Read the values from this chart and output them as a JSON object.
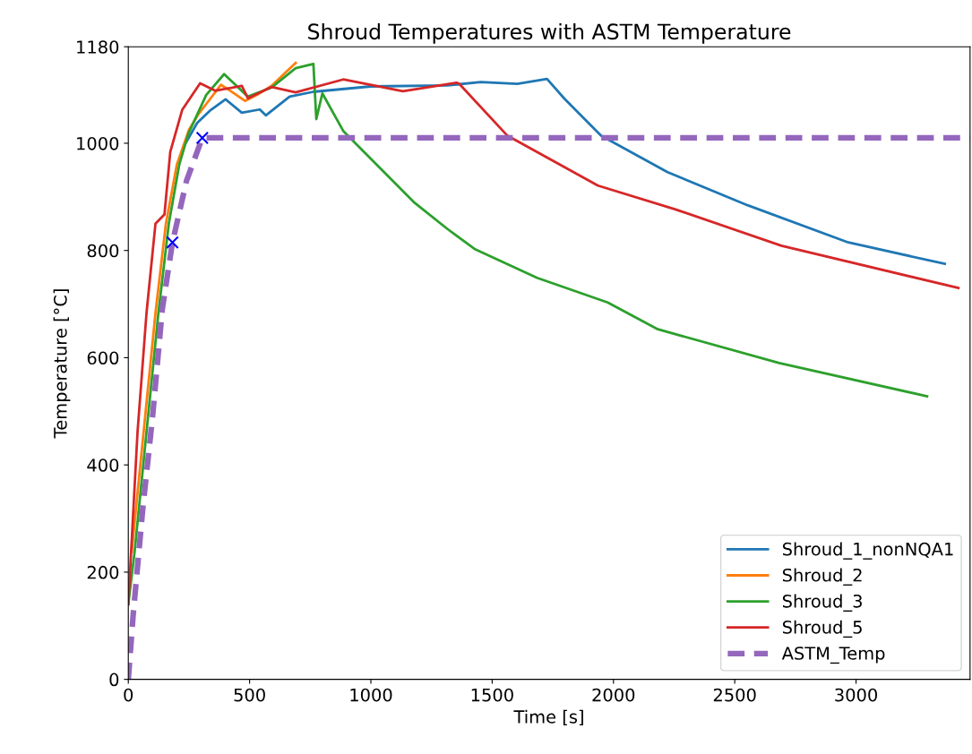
{
  "chart_data": {
    "type": "line",
    "title": "Shroud Temperatures with ASTM Temperature",
    "xlabel": "Time [s]",
    "ylabel": "Temperature [°C]",
    "xlim": [
      0,
      3470
    ],
    "ylim": [
      0,
      1180
    ],
    "xticks": [
      0,
      500,
      1000,
      1500,
      2000,
      2500,
      3000
    ],
    "yticks": [
      0,
      200,
      400,
      600,
      800,
      1000,
      1180
    ],
    "grid": false,
    "legend": "bottom right",
    "line_style": "solid",
    "marker": "none",
    "series": [
      {
        "name": "Shroud_1_nonNQA1",
        "color": "#1f77b4",
        "x": [
          230,
          284,
          340,
          401,
          468,
          542,
          567,
          665,
          763,
          1000,
          1316,
          1453,
          1604,
          1726,
          1798,
          1949,
          2223,
          2555,
          2968,
          3366
        ],
        "values": [
          995,
          1038,
          1062,
          1082,
          1057,
          1063,
          1052,
          1087,
          1096,
          1106,
          1108,
          1114,
          1111,
          1120,
          1083,
          1014,
          946,
          884,
          815,
          775
        ]
      },
      {
        "name": "Shroud_2",
        "color": "#ff7f0e",
        "x": [
          14,
          63,
          112,
          155,
          200,
          250,
          290,
          321,
          382,
          430,
          481,
          530,
          590,
          690
        ],
        "values": [
          238,
          461,
          683,
          850,
          960,
          1025,
          1055,
          1073,
          1109,
          1095,
          1079,
          1090,
          1107,
          1150
        ]
      },
      {
        "name": "Shroud_3",
        "color": "#2ca02c",
        "x": [
          0,
          26,
          75,
          124,
          167,
          210,
          247,
          321,
          395,
          493,
          591,
          690,
          763,
          775,
          800,
          886,
          1180,
          1316,
          1427,
          1685,
          1976,
          2183,
          2683,
          3293
        ],
        "values": [
          140,
          238,
          461,
          683,
          850,
          960,
          1017,
          1090,
          1129,
          1087,
          1104,
          1140,
          1148,
          1045,
          1093,
          1023,
          889,
          840,
          803,
          749,
          703,
          653,
          590,
          528
        ]
      },
      {
        "name": "Shroud_5",
        "color": "#d62728",
        "x": [
          0,
          38,
          75,
          112,
          149,
          173,
          222,
          296,
          358,
          468,
          493,
          591,
          690,
          886,
          1132,
          1353,
          1364,
          1563,
          1936,
          2253,
          2692,
          3422
        ],
        "values": [
          140,
          461,
          683,
          850,
          867,
          984,
          1062,
          1112,
          1098,
          1107,
          1084,
          1105,
          1095,
          1119,
          1097,
          1113,
          1111,
          1014,
          921,
          877,
          809,
          730
        ]
      },
      {
        "name": "ASTM_Temp",
        "color": "#9467bd",
        "line_style": "dashed",
        "x": [
          0,
          20,
          60,
          100,
          140,
          182,
          240,
          305,
          3470
        ],
        "values": [
          0,
          120,
          320,
          490,
          690,
          815,
          930,
          1010,
          1010
        ]
      },
      {
        "type": "scatter",
        "color": "#0000ff",
        "marker": "cross",
        "x": [
          182,
          305
        ],
        "values": [
          815,
          1010
        ]
      }
    ]
  }
}
